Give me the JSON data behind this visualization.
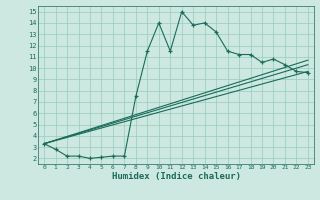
{
  "title": "",
  "xlabel": "Humidex (Indice chaleur)",
  "xlim": [
    -0.5,
    23.5
  ],
  "ylim": [
    1.5,
    15.5
  ],
  "xticks": [
    0,
    1,
    2,
    3,
    4,
    5,
    6,
    7,
    8,
    9,
    10,
    11,
    12,
    13,
    14,
    15,
    16,
    17,
    18,
    19,
    20,
    21,
    22,
    23
  ],
  "yticks": [
    2,
    3,
    4,
    5,
    6,
    7,
    8,
    9,
    10,
    11,
    12,
    13,
    14,
    15
  ],
  "bg_color": "#cce8e0",
  "grid_color": "#99ccbb",
  "line_color": "#1a6b5a",
  "line1_x": [
    0,
    1,
    2,
    3,
    4,
    5,
    6,
    7,
    8,
    9,
    10,
    11,
    12,
    13,
    14,
    15,
    16,
    17,
    18,
    19,
    20,
    21,
    22,
    23
  ],
  "line1_y": [
    3.3,
    2.8,
    2.2,
    2.2,
    2.0,
    2.1,
    2.2,
    2.2,
    7.5,
    11.5,
    14.0,
    11.5,
    15.0,
    13.8,
    14.0,
    13.2,
    11.5,
    11.2,
    11.2,
    10.5,
    10.8,
    10.3,
    9.7,
    9.6
  ],
  "line2_x": [
    0,
    23
  ],
  "line2_y": [
    3.3,
    9.7
  ],
  "line3_x": [
    0,
    23
  ],
  "line3_y": [
    3.3,
    10.3
  ],
  "line4_x": [
    0,
    23
  ],
  "line4_y": [
    3.3,
    10.7
  ]
}
